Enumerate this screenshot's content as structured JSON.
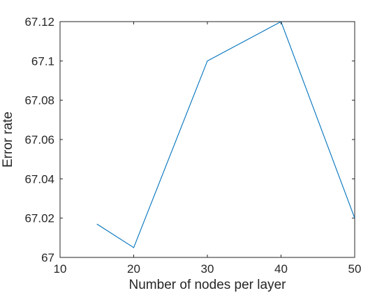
{
  "chart_data": {
    "type": "line",
    "title": "",
    "xlabel": "Number of nodes per layer",
    "ylabel": "Error rate",
    "xlim": [
      10,
      50
    ],
    "ylim": [
      67,
      67.12
    ],
    "xticks": [
      10,
      20,
      30,
      40,
      50
    ],
    "xtick_labels": [
      "10",
      "20",
      "30",
      "40",
      "50"
    ],
    "yticks": [
      67,
      67.02,
      67.04,
      67.06,
      67.08,
      67.1,
      67.12
    ],
    "ytick_labels": [
      "67",
      "67.02",
      "67.04",
      "67.06",
      "67.08",
      "67.1",
      "67.12"
    ],
    "grid": false,
    "legend": "none",
    "series": [
      {
        "x": [
          15,
          20,
          30,
          40,
          50
        ],
        "y": [
          67.017,
          67.005,
          67.1,
          67.12,
          67.02
        ],
        "color": "#0072BD"
      }
    ],
    "axis_color": "#262626"
  }
}
